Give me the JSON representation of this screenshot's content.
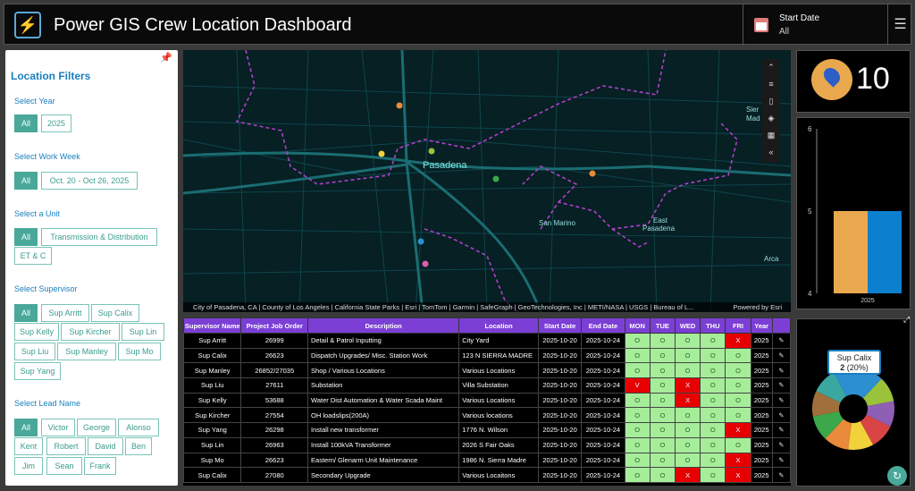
{
  "header": {
    "title": "Power GIS Crew Location Dashboard",
    "date_label": "Start Date",
    "date_value": "All"
  },
  "filters": {
    "title": "Location Filters",
    "year": {
      "label": "Select Year",
      "options": [
        "All",
        "2025"
      ]
    },
    "week": {
      "label": "Select Work Week",
      "options": [
        "All",
        "Oct. 20 - Oct 26, 2025"
      ]
    },
    "unit": {
      "label": "Select a Unit",
      "options": [
        "All",
        "Transmission & Distribution",
        "ET & C"
      ]
    },
    "supervisor": {
      "label": "Select Supervisor",
      "options": [
        "All",
        "Sup Arritt",
        "Sup Calix",
        "Sup Kelly",
        "Sup Kircher",
        "Sup Lin",
        "Sup Liu",
        "Sup Manley",
        "Sup Mo",
        "Sup Yang"
      ]
    },
    "lead": {
      "label": "Select Lead Name",
      "options": [
        "All",
        "Victor",
        "George",
        "Alonso",
        "Kent",
        "Robert",
        "David",
        "Ben",
        "Jim",
        "Sean",
        "Frank"
      ]
    }
  },
  "map": {
    "labels": {
      "pasadena": "Pasadena",
      "san_marino": "San Marino",
      "east_pasadena_1": "East",
      "east_pasadena_2": "Pasadena",
      "sierra_madre_1": "Sier",
      "sierra_madre_2": "Mad",
      "arcadia": "Arca"
    },
    "attribution": "City of Pasadena, CA | County of Los Angeles | California State Parks | Esri | TomTom | Garmin | SafeGraph | GeoTechnologies, Inc | METI/NASA | USGS | Bureau of L...",
    "powered_by": "Powered by Esri",
    "tool_icons": [
      "chevron-up-icon",
      "list-icon",
      "bookmark-icon",
      "layers-icon",
      "qr-icon",
      "collapse-icon"
    ]
  },
  "table": {
    "headers": [
      "Supervisor Name",
      "Project Job Order",
      "Description",
      "Location",
      "Start Date",
      "End Date",
      "MON",
      "TUE",
      "WED",
      "THU",
      "FRI",
      "Year",
      ""
    ],
    "rows": [
      [
        "Sup Arritt",
        "26999",
        "Detail & Patrol Inputting",
        "City Yard",
        "2025-10-20",
        "2025-10-24",
        "O",
        "O",
        "O",
        "O",
        "X",
        "2025"
      ],
      [
        "Sup Calix",
        "26623",
        "Dispatch Upgrades/ Misc. Station Work",
        "123 N SIERRA MADRE",
        "2025-10-20",
        "2025-10-24",
        "O",
        "O",
        "O",
        "O",
        "O",
        "2025"
      ],
      [
        "Sup Manley",
        "26852/27035",
        "Shop / Various Locations",
        "Various Locations",
        "2025-10-20",
        "2025-10-24",
        "O",
        "O",
        "O",
        "O",
        "O",
        "2025"
      ],
      [
        "Sup Liu",
        "27611",
        "Substation",
        "Villa Substation",
        "2025-10-20",
        "2025-10-24",
        "V",
        "O",
        "X",
        "O",
        "O",
        "2025"
      ],
      [
        "Sup Kelly",
        "53688",
        "Water Dist Automation & Water Scada Maint",
        "Various Locations",
        "2025-10-20",
        "2025-10-24",
        "O",
        "O",
        "X",
        "O",
        "O",
        "2025"
      ],
      [
        "Sup Kircher",
        "27554",
        "OH loadslips(200A)",
        "Various locations",
        "2025-10-20",
        "2025-10-24",
        "O",
        "O",
        "O",
        "O",
        "O",
        "2025"
      ],
      [
        "Sup Yang",
        "26298",
        "Install new transformer",
        "1776 N. Wilson",
        "2025-10-20",
        "2025-10-24",
        "O",
        "O",
        "O",
        "O",
        "X",
        "2025"
      ],
      [
        "Sup Lin",
        "26963",
        "Install 100kVA Transformer",
        "2026 S Fair Oaks",
        "2025-10-20",
        "2025-10-24",
        "O",
        "O",
        "O",
        "O",
        "O",
        "2025"
      ],
      [
        "Sup Mo",
        "26623",
        "Eastern/ Glenarm Unit Maintenance",
        "1986 N. Sierra Madre",
        "2025-10-20",
        "2025-10-24",
        "O",
        "O",
        "O",
        "O",
        "X",
        "2025"
      ],
      [
        "Sup Calix",
        "27080",
        "Secondary Upgrade",
        "Various Locaitons",
        "2025-10-20",
        "2025-10-24",
        "O",
        "O",
        "X",
        "O",
        "X",
        "2025"
      ]
    ]
  },
  "kpi": {
    "value": "10"
  },
  "bar_chart": {
    "chart_data": {
      "type": "bar",
      "categories": [
        "2025"
      ],
      "series": [
        {
          "values": [
            5
          ]
        },
        {
          "values": [
            5
          ]
        }
      ],
      "ylim": [
        4,
        6
      ],
      "ticks": [
        "4",
        "5",
        "6"
      ],
      "colors": [
        "#e9a84e",
        "#0d7fcf"
      ]
    }
  },
  "donut": {
    "tooltip_name": "Sup Calix",
    "tooltip_count": "2",
    "tooltip_pct": " (20%)",
    "chart_data": {
      "type": "pie",
      "slices": [
        {
          "name": "Sup Calix",
          "value": 2,
          "color": "#2c8fd0"
        },
        {
          "value": 1,
          "color": "#9bc23b"
        },
        {
          "value": 1,
          "color": "#8e5fb5"
        },
        {
          "value": 1,
          "color": "#d94545"
        },
        {
          "value": 1,
          "color": "#f2d23a"
        },
        {
          "value": 1,
          "color": "#e98b3a"
        },
        {
          "value": 1,
          "color": "#3aa84b"
        },
        {
          "value": 1,
          "color": "#a0703c"
        },
        {
          "value": 1,
          "color": "#3aa8a0"
        }
      ]
    }
  }
}
